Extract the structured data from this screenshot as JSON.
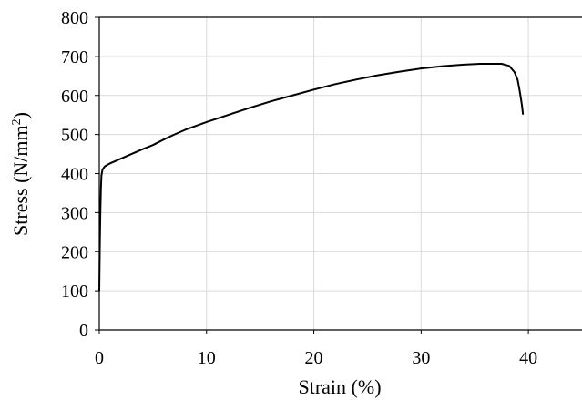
{
  "chart_data": {
    "type": "line",
    "xlabel": "Strain (%)",
    "ylabel_main": "Stress (N/mm",
    "ylabel_sup": "2",
    "ylabel_tail": ")",
    "xlim": [
      0,
      45
    ],
    "ylim": [
      0,
      800
    ],
    "x_ticks": [
      0,
      10,
      20,
      30,
      40
    ],
    "y_ticks": [
      0,
      100,
      200,
      300,
      400,
      500,
      600,
      700,
      800
    ],
    "grid": true,
    "line_color": "#000000",
    "grid_color": "#d9d9d9",
    "series": [
      {
        "x": [
          0,
          0.05,
          0.1,
          0.15,
          0.2,
          0.3,
          0.5,
          0.8,
          1.0,
          1.5,
          2.0,
          3.0,
          4.0,
          5.0,
          6.0,
          7.0,
          8.0,
          10.0,
          12.0,
          14.0,
          16.0,
          18.0,
          20.0,
          22.0,
          24.0,
          26.0,
          28.0,
          30.0,
          32.0,
          34.0,
          35.5,
          36.5,
          37.5,
          38.2,
          38.7,
          39.0,
          39.2,
          39.4,
          39.5
        ],
        "y": [
          100,
          220,
          300,
          360,
          395,
          410,
          418,
          423,
          426,
          432,
          438,
          450,
          462,
          473,
          487,
          500,
          512,
          532,
          550,
          568,
          585,
          600,
          615,
          629,
          641,
          652,
          661,
          669,
          675,
          679,
          681,
          681,
          681,
          676,
          660,
          640,
          610,
          575,
          551
        ]
      }
    ]
  }
}
